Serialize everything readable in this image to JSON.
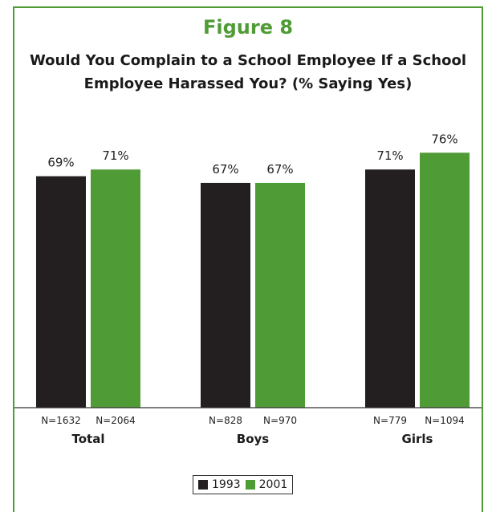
{
  "figure_label": "Figure 8",
  "chart_data": {
    "type": "bar",
    "title": "Would You Complain to a School Employee If a School Employee Harassed You? (% Saying Yes)",
    "categories": [
      "Total",
      "Boys",
      "Girls"
    ],
    "series": [
      {
        "name": "1993",
        "color": "#231f20",
        "values": [
          69,
          67,
          71
        ],
        "labels": [
          "69%",
          "67%",
          "71%"
        ],
        "n": [
          "N=1632",
          "N=828",
          "N=779"
        ]
      },
      {
        "name": "2001",
        "color": "#4f9b35",
        "values": [
          71,
          67,
          76
        ],
        "labels": [
          "71%",
          "67%",
          "76%"
        ],
        "n": [
          "N=2064",
          "N=970",
          "N=1094"
        ]
      }
    ],
    "ylim": [
      0,
      100
    ],
    "grid": false,
    "legend_position": "bottom-center"
  }
}
